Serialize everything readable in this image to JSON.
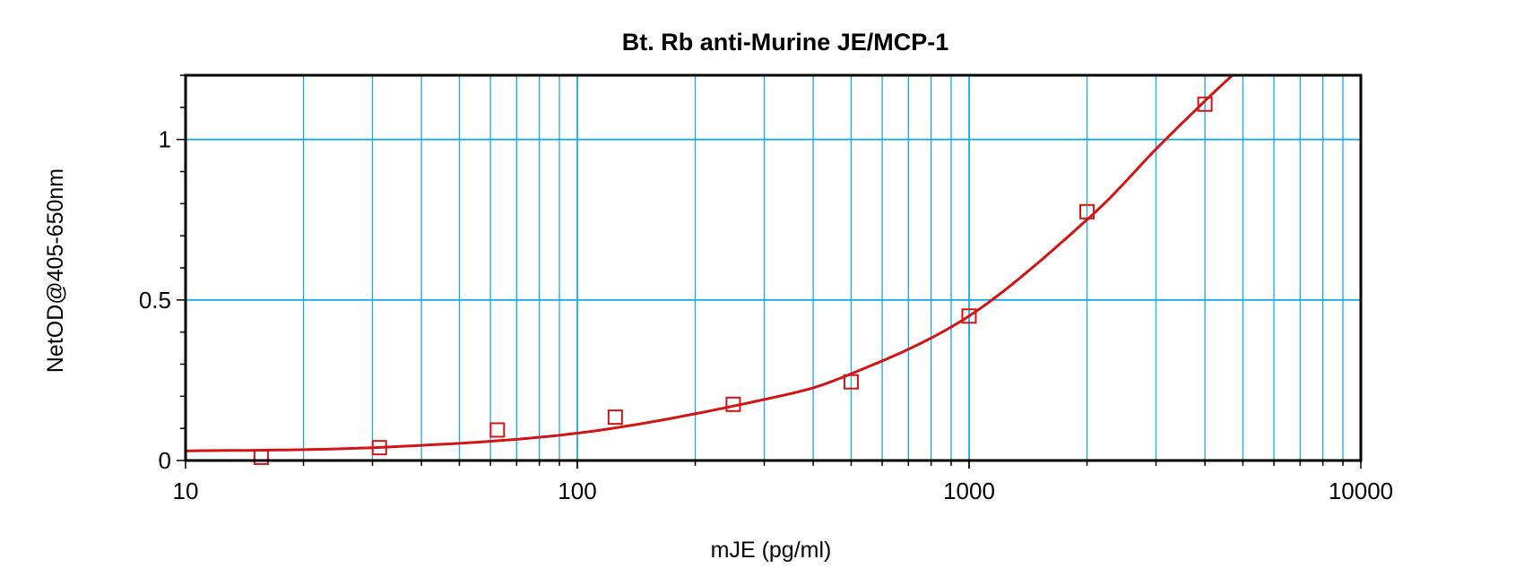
{
  "colors": {
    "grid": "#19a9e8",
    "frame": "#000000",
    "curve": "#d21414",
    "marker": "#d21414",
    "background": "#ffffff"
  },
  "chart_data": {
    "type": "scatter",
    "title": "Bt. Rb anti-Murine JE/MCP-1",
    "xlabel": "mJE (pg/ml)",
    "ylabel": "NetOD@405-650nm",
    "x_scale": "log",
    "xlim": [
      10,
      10000
    ],
    "ylim": [
      0,
      1.2
    ],
    "x_ticks": [
      {
        "value": 10,
        "label": "10"
      },
      {
        "value": 100,
        "label": "100"
      },
      {
        "value": 1000,
        "label": "1000"
      },
      {
        "value": 10000,
        "label": "10000"
      }
    ],
    "y_ticks": [
      {
        "value": 0,
        "label": "0"
      },
      {
        "value": 0.5,
        "label": "0.5"
      },
      {
        "value": 1,
        "label": "1"
      }
    ],
    "grid": true,
    "legend": "none",
    "series": [
      {
        "kind": "points",
        "marker": "open-square",
        "x": [
          15.6,
          31.25,
          62.5,
          125,
          250,
          500,
          1000,
          2000,
          4000
        ],
        "y": [
          0.01,
          0.04,
          0.095,
          0.135,
          0.175,
          0.245,
          0.45,
          0.775,
          1.11
        ]
      },
      {
        "kind": "fit-curve",
        "x": [
          10,
          30,
          100,
          300,
          500,
          1000,
          2000,
          3000,
          4000,
          4700
        ],
        "y": [
          0.03,
          0.04,
          0.085,
          0.19,
          0.27,
          0.45,
          0.75,
          0.97,
          1.12,
          1.2
        ]
      }
    ]
  }
}
